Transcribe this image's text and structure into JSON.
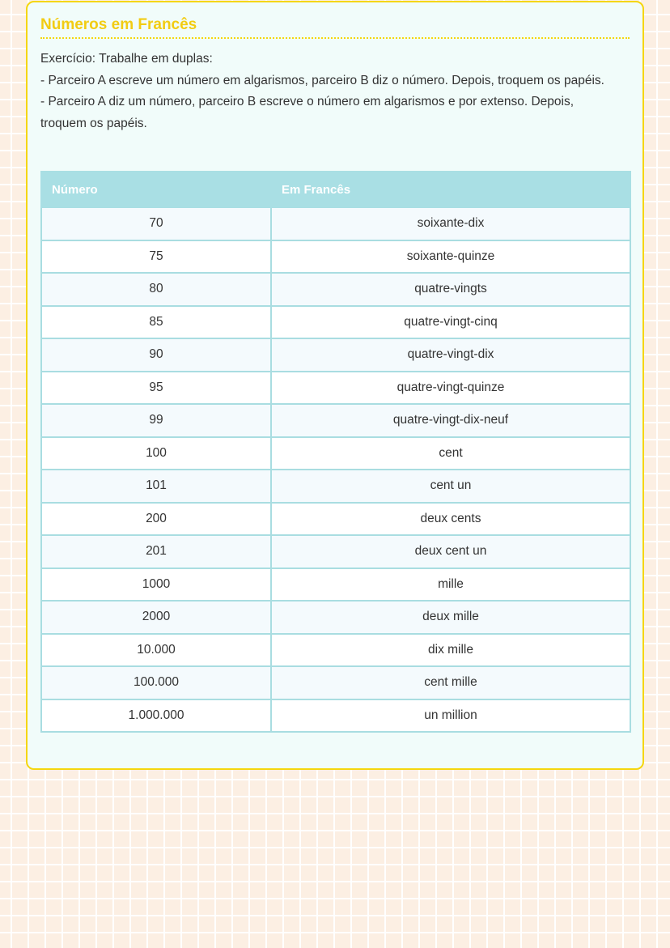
{
  "title": "Números em Francês",
  "instructions": [
    "Exercício: Trabalhe em duplas:",
    "- Parceiro A escreve um número em algarismos, parceiro B diz o número. Depois, troquem os papéis.",
    "- Parceiro A diz um número, parceiro B escreve o número em algarismos e por extenso. Depois, troquem os papéis."
  ],
  "table": {
    "headers": [
      "Número",
      "Em Francês"
    ],
    "rows": [
      [
        "70",
        "soixante-dix"
      ],
      [
        "75",
        "soixante-quinze"
      ],
      [
        "80",
        "quatre-vingts"
      ],
      [
        "85",
        "quatre-vingt-cinq"
      ],
      [
        "90",
        "quatre-vingt-dix"
      ],
      [
        "95",
        "quatre-vingt-quinze"
      ],
      [
        "99",
        "quatre-vingt-dix-neuf"
      ],
      [
        "100",
        "cent"
      ],
      [
        "101",
        "cent un"
      ],
      [
        "200",
        "deux cents"
      ],
      [
        "201",
        "deux cent un"
      ],
      [
        "1000",
        "mille"
      ],
      [
        "2000",
        "deux mille"
      ],
      [
        "10.000",
        "dix mille"
      ],
      [
        "100.000",
        "cent mille"
      ],
      [
        "1.000.000",
        "un million"
      ]
    ]
  },
  "colors": {
    "accent": "#f5d60f",
    "table_header": "#a9dfe4"
  }
}
